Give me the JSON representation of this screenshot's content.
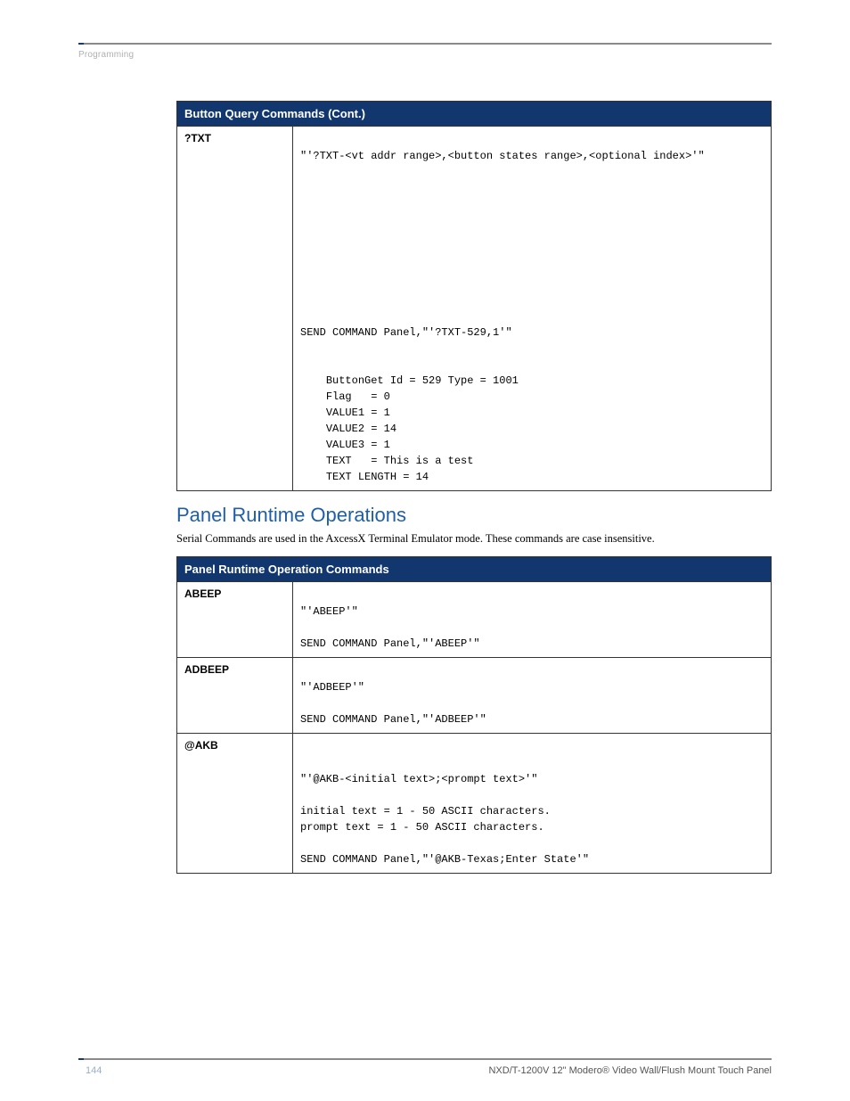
{
  "header": {
    "section_label": "Programming"
  },
  "table1": {
    "title": "Button Query Commands (Cont.)",
    "row": {
      "label": "?TXT",
      "syntax_line": "\"'?TXT-<vt addr range>,<button states range>,<optional index>'\"",
      "example_send": "SEND COMMAND Panel,\"'?TXT-529,1'\"",
      "out1": "ButtonGet Id = 529 Type = 1001",
      "out2": "Flag   = 0",
      "out3": "VALUE1 = 1",
      "out4": "VALUE2 = 14",
      "out5": "VALUE3 = 1",
      "out6": "TEXT   = This is a test",
      "out7": "TEXT LENGTH = 14"
    }
  },
  "section2": {
    "heading": "Panel Runtime Operations",
    "intro": "Serial Commands are used in the AxcessX Terminal Emulator mode. These commands are case insensitive."
  },
  "table2": {
    "title": "Panel Runtime Operation Commands",
    "rows": {
      "abeep": {
        "label": "ABEEP",
        "syntax": "\"'ABEEP'\"",
        "send": "SEND COMMAND Panel,\"'ABEEP'\""
      },
      "adbeep": {
        "label": "ADBEEP",
        "syntax": "\"'ADBEEP'\"",
        "send": "SEND COMMAND Panel,\"'ADBEEP'\""
      },
      "akb": {
        "label": "@AKB",
        "syntax": "\"'@AKB-<initial text>;<prompt text>'\"",
        "var1": "initial text = 1 - 50 ASCII characters.",
        "var2": "prompt text = 1 - 50 ASCII characters.",
        "send": "SEND COMMAND Panel,\"'@AKB-Texas;Enter State'\""
      }
    }
  },
  "footer": {
    "page_number": "144",
    "doc_title": "NXD/T-1200V 12\" Modero® Video Wall/Flush Mount Touch Panel"
  }
}
